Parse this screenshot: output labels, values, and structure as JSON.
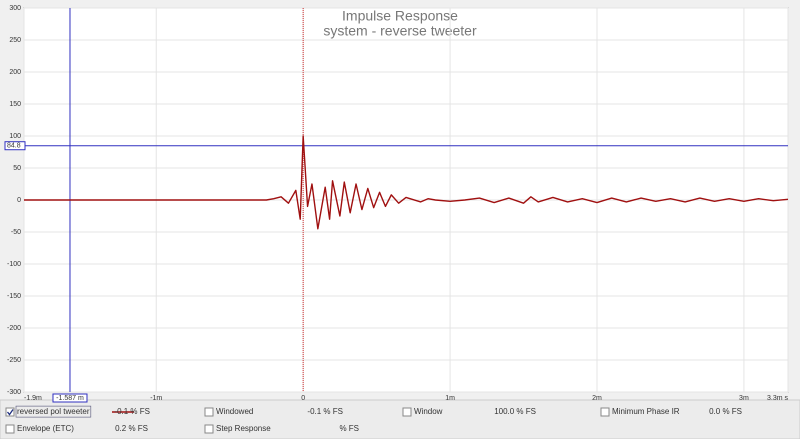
{
  "chart_data": {
    "type": "line",
    "title": "Impulse Response",
    "subtitle": "system - reverse tweeter",
    "xlim": [
      -1.9,
      3.3
    ],
    "ylim": [
      -300,
      300
    ],
    "xticks": [
      {
        "value": -1.9,
        "label": "-1.9m"
      },
      {
        "value": -1,
        "label": "-1m"
      },
      0,
      {
        "value": 1,
        "label": "1m"
      },
      {
        "value": 2,
        "label": "2m"
      },
      {
        "value": 3,
        "label": "3m"
      },
      {
        "value": 3.3,
        "label": "3.3m s"
      }
    ],
    "yticks": [
      300,
      250,
      200,
      150,
      100,
      50,
      0,
      -50,
      -100,
      -150,
      -200,
      -250,
      -300
    ],
    "grid": true,
    "cursor_x": {
      "value": -1.587,
      "label": "-1.587 m"
    },
    "cursor_y": 84.8,
    "series": [
      {
        "name": "reversed pol tweeter",
        "color": "#a01010",
        "x": [
          -1.9,
          -1.0,
          -0.5,
          -0.25,
          -0.2,
          -0.15,
          -0.1,
          -0.05,
          -0.02,
          0,
          0.03,
          0.06,
          0.1,
          0.15,
          0.18,
          0.2,
          0.25,
          0.28,
          0.32,
          0.36,
          0.4,
          0.44,
          0.48,
          0.52,
          0.56,
          0.6,
          0.65,
          0.7,
          0.8,
          0.85,
          0.9,
          1.0,
          1.1,
          1.2,
          1.3,
          1.4,
          1.5,
          1.55,
          1.6,
          1.7,
          1.8,
          1.9,
          2.0,
          2.1,
          2.2,
          2.3,
          2.4,
          2.5,
          2.6,
          2.7,
          2.8,
          2.9,
          3.0,
          3.1,
          3.2,
          3.3
        ],
        "values": [
          0,
          0,
          0,
          0,
          2,
          5,
          -5,
          15,
          -30,
          100,
          -10,
          25,
          -45,
          20,
          -30,
          30,
          -25,
          28,
          -20,
          25,
          -15,
          18,
          -12,
          12,
          -10,
          8,
          -5,
          4,
          -3,
          2,
          0,
          -2,
          0,
          3,
          -4,
          3,
          -5,
          5,
          -3,
          4,
          -3,
          2,
          -4,
          3,
          -3,
          3,
          -2,
          2,
          -3,
          3,
          -2,
          2,
          -2,
          2,
          -1,
          1
        ]
      }
    ],
    "controls": [
      {
        "label": "reversed pol tweeter",
        "readout": "-0.1 % FS",
        "color": "#000080",
        "checked": true
      },
      {
        "label": "Windowed",
        "readout": "-0.1 % FS",
        "color": "#d02020",
        "checked": false
      },
      {
        "label": "Window",
        "readout": "100.0 % FS",
        "color": "#2020c0",
        "checked": false
      },
      {
        "label": "Minimum Phase IR",
        "readout": "0.0 % FS",
        "color": "#909090",
        "checked": false
      },
      {
        "label": "Envelope (ETC)",
        "readout": "0.2 % FS",
        "color": "#c02020",
        "checked": false
      },
      {
        "label": "Step Response",
        "readout": "% FS",
        "color": "#800000",
        "checked": false
      }
    ]
  }
}
